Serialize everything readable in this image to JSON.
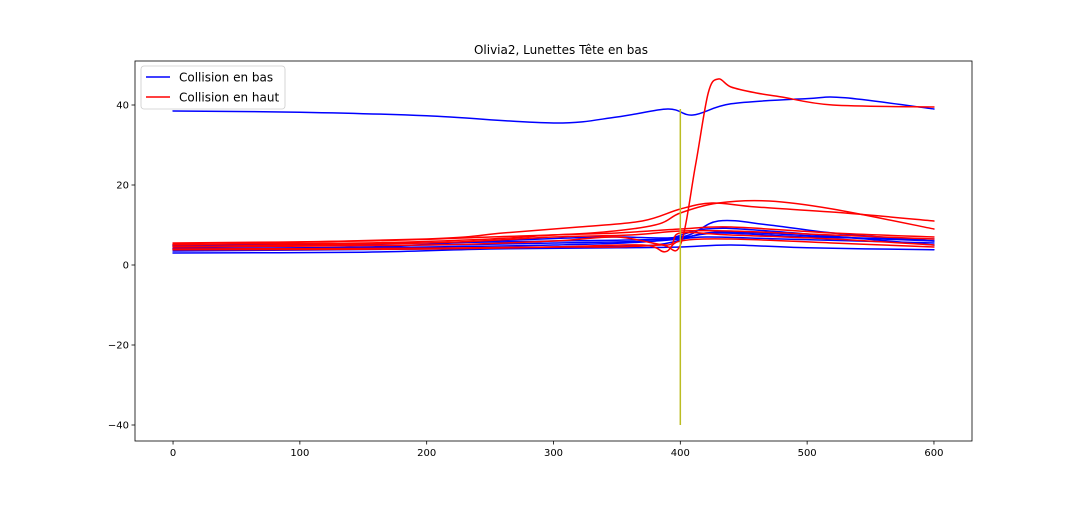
{
  "chart_data": {
    "type": "line",
    "title": "Olivia2, Lunettes Tête en bas",
    "xlabel": "",
    "ylabel": "",
    "xlim": [
      -30,
      630
    ],
    "ylim": [
      -44,
      51
    ],
    "xticks": [
      0,
      100,
      200,
      300,
      400,
      500,
      600
    ],
    "yticks": [
      -40,
      -20,
      0,
      20,
      40
    ],
    "grid": false,
    "legend_position": "upper-left",
    "legend": [
      {
        "label": "Collision en bas",
        "color": "#0000ff"
      },
      {
        "label": "Collision en haut",
        "color": "#ff0000"
      }
    ],
    "vline": {
      "x": 400,
      "y_from": -40,
      "y_to": 39,
      "color": "#bcbd22"
    },
    "series": [
      {
        "group": "Collision en bas",
        "color": "#0000ff",
        "points": [
          [
            0,
            38.5
          ],
          [
            100,
            38.2
          ],
          [
            200,
            37.3
          ],
          [
            300,
            35.5
          ],
          [
            350,
            37
          ],
          [
            390,
            39
          ],
          [
            410,
            37.5
          ],
          [
            440,
            40.3
          ],
          [
            500,
            41.6
          ],
          [
            530,
            41.8
          ],
          [
            600,
            39
          ]
        ]
      },
      {
        "group": "Collision en bas",
        "color": "#0000ff",
        "points": [
          [
            0,
            3
          ],
          [
            150,
            3.2
          ],
          [
            250,
            4
          ],
          [
            350,
            4.3
          ],
          [
            400,
            4.5
          ],
          [
            440,
            5
          ],
          [
            500,
            4.3
          ],
          [
            600,
            3.8
          ]
        ]
      },
      {
        "group": "Collision en bas",
        "color": "#0000ff",
        "points": [
          [
            0,
            3.5
          ],
          [
            200,
            4
          ],
          [
            300,
            4.5
          ],
          [
            380,
            5
          ],
          [
            420,
            8
          ],
          [
            460,
            8
          ],
          [
            520,
            7
          ],
          [
            600,
            6
          ]
        ]
      },
      {
        "group": "Collision en bas",
        "color": "#0000ff",
        "points": [
          [
            0,
            4
          ],
          [
            200,
            4.5
          ],
          [
            300,
            5
          ],
          [
            380,
            6
          ],
          [
            420,
            9
          ],
          [
            470,
            8.5
          ],
          [
            600,
            5
          ]
        ]
      },
      {
        "group": "Collision en bas",
        "color": "#0000ff",
        "points": [
          [
            0,
            4.2
          ],
          [
            150,
            4.5
          ],
          [
            250,
            6
          ],
          [
            340,
            7
          ],
          [
            400,
            7
          ],
          [
            430,
            11
          ],
          [
            470,
            10
          ],
          [
            520,
            8
          ],
          [
            600,
            6
          ]
        ]
      },
      {
        "group": "Collision en bas",
        "color": "#0000ff",
        "points": [
          [
            0,
            4.8
          ],
          [
            200,
            5
          ],
          [
            300,
            5.5
          ],
          [
            380,
            6
          ],
          [
            420,
            7
          ],
          [
            480,
            6.5
          ],
          [
            600,
            5.5
          ]
        ]
      },
      {
        "group": "Collision en bas",
        "color": "#0000ff",
        "points": [
          [
            0,
            5
          ],
          [
            200,
            5.5
          ],
          [
            300,
            6
          ],
          [
            390,
            6.5
          ],
          [
            430,
            8
          ],
          [
            500,
            7
          ],
          [
            600,
            6.5
          ]
        ]
      },
      {
        "group": "Collision en haut",
        "color": "#ff0000",
        "points": [
          [
            0,
            4
          ],
          [
            200,
            4.2
          ],
          [
            300,
            4.5
          ],
          [
            350,
            4.5
          ],
          [
            385,
            5
          ],
          [
            400,
            5
          ],
          [
            412,
            25
          ],
          [
            422,
            43
          ],
          [
            430,
            46.5
          ],
          [
            440,
            44.5
          ],
          [
            460,
            43
          ],
          [
            480,
            42
          ],
          [
            520,
            40
          ],
          [
            600,
            39.5
          ]
        ]
      },
      {
        "group": "Collision en haut",
        "color": "#ff0000",
        "points": [
          [
            0,
            5.5
          ],
          [
            150,
            6
          ],
          [
            250,
            7
          ],
          [
            330,
            8
          ],
          [
            380,
            10
          ],
          [
            400,
            13
          ],
          [
            430,
            15.5
          ],
          [
            470,
            16
          ],
          [
            520,
            14
          ],
          [
            600,
            9
          ]
        ]
      },
      {
        "group": "Collision en haut",
        "color": "#ff0000",
        "points": [
          [
            0,
            5
          ],
          [
            200,
            6.5
          ],
          [
            260,
            8
          ],
          [
            320,
            9.5
          ],
          [
            370,
            11
          ],
          [
            400,
            14
          ],
          [
            425,
            15.5
          ],
          [
            460,
            14.5
          ],
          [
            530,
            13
          ],
          [
            600,
            11
          ]
        ]
      },
      {
        "group": "Collision en haut",
        "color": "#ff0000",
        "points": [
          [
            0,
            4.5
          ],
          [
            200,
            5
          ],
          [
            300,
            6
          ],
          [
            350,
            7
          ],
          [
            390,
            5
          ],
          [
            400,
            8
          ],
          [
            440,
            7.5
          ],
          [
            520,
            6.5
          ],
          [
            600,
            5
          ]
        ]
      },
      {
        "group": "Collision en haut",
        "color": "#ff0000",
        "points": [
          [
            0,
            3.8
          ],
          [
            200,
            4
          ],
          [
            300,
            4.5
          ],
          [
            370,
            5
          ],
          [
            388,
            3.3
          ],
          [
            400,
            6
          ],
          [
            440,
            6.5
          ],
          [
            520,
            5.5
          ],
          [
            600,
            4.5
          ]
        ]
      },
      {
        "group": "Collision en haut",
        "color": "#ff0000",
        "points": [
          [
            0,
            5.2
          ],
          [
            150,
            5.5
          ],
          [
            250,
            6.5
          ],
          [
            300,
            7.5
          ],
          [
            350,
            8
          ],
          [
            400,
            9
          ],
          [
            440,
            9.5
          ],
          [
            520,
            8
          ],
          [
            600,
            7
          ]
        ]
      },
      {
        "group": "Collision en haut",
        "color": "#ff0000",
        "points": [
          [
            0,
            4.6
          ],
          [
            200,
            5.5
          ],
          [
            300,
            7
          ],
          [
            360,
            7.5
          ],
          [
            400,
            8.5
          ],
          [
            440,
            8.5
          ],
          [
            520,
            7.5
          ],
          [
            600,
            6.5
          ]
        ]
      }
    ]
  }
}
